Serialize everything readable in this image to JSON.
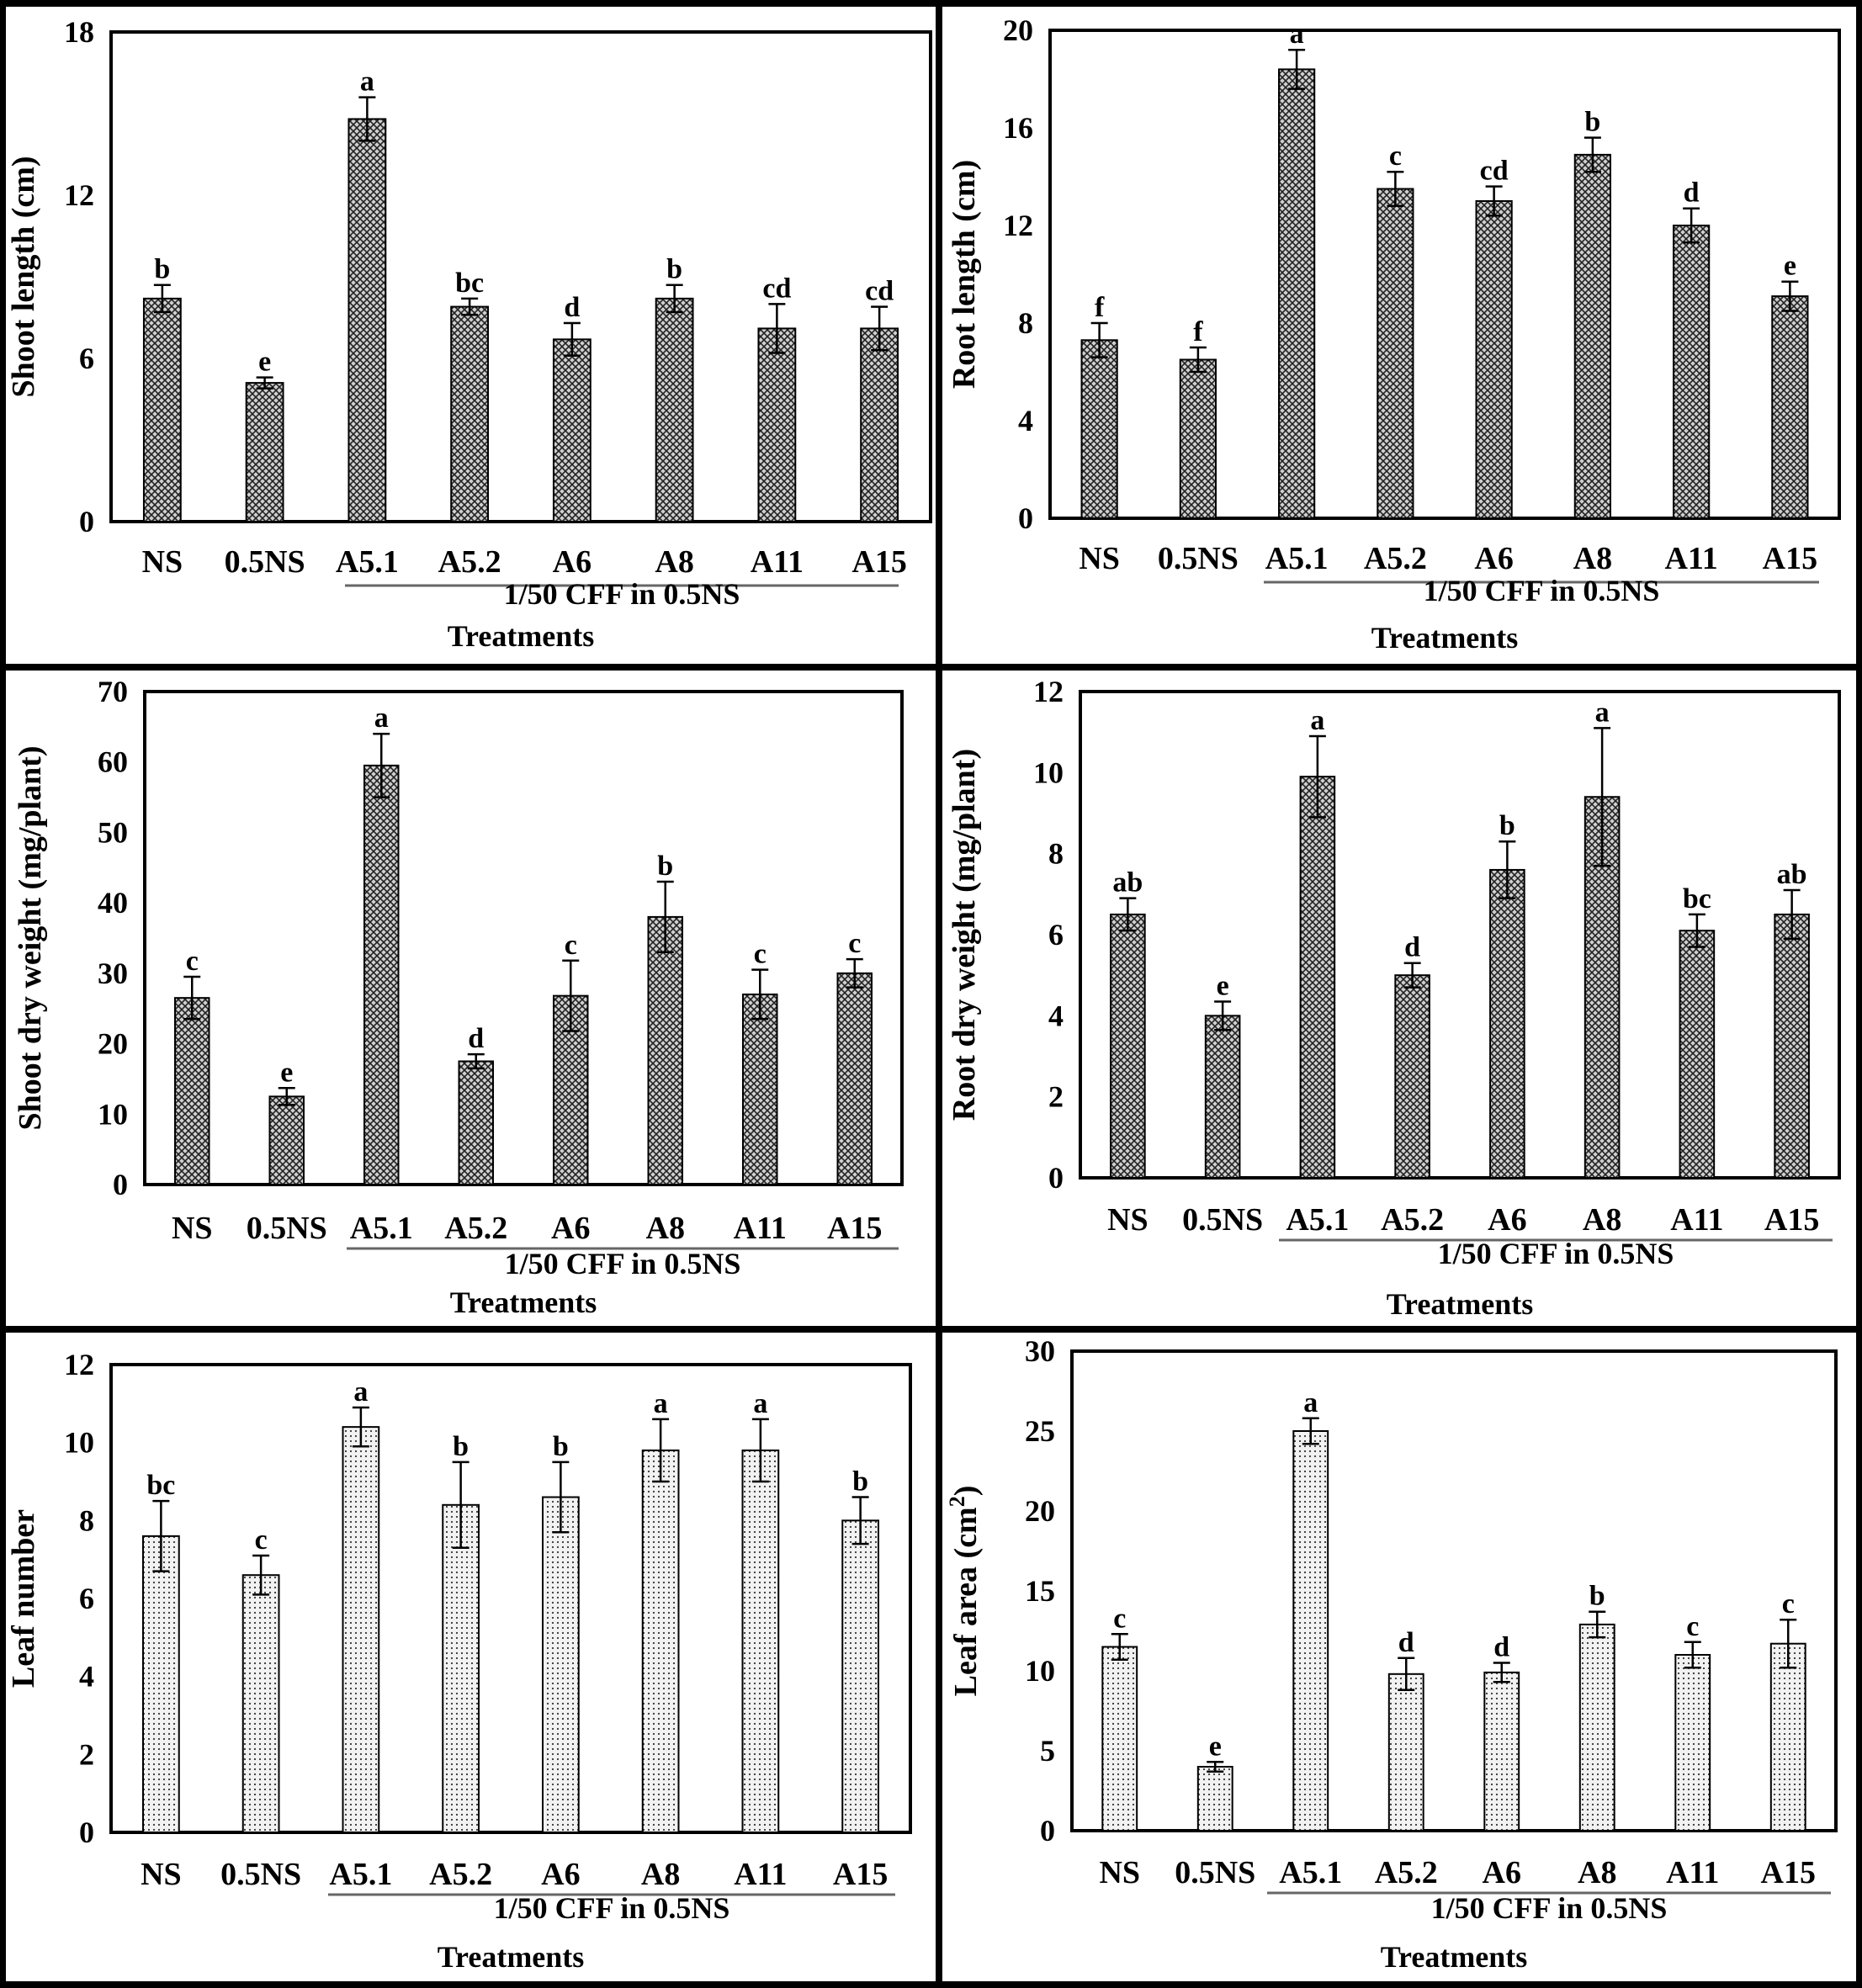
{
  "colors": {
    "bar_fill": "#d8d8d8",
    "frame": "#000000",
    "background": "#ffffff"
  },
  "chart_data": [
    {
      "type": "bar",
      "ylabel": "Shoot length (cm)",
      "xlabel": "Treatments",
      "group_label": "1/50 CFF in 0.5NS",
      "ylim": [
        0,
        18
      ],
      "yticks": [
        "0",
        "6",
        "12",
        "18"
      ],
      "ytick_values": [
        0,
        6,
        12,
        18
      ],
      "categories": [
        "NS",
        "0.5NS",
        "A5.1",
        "A5.2",
        "A6",
        "A8",
        "A11",
        "A15"
      ],
      "values": [
        8.2,
        5.1,
        14.8,
        7.9,
        6.7,
        8.2,
        7.1,
        7.1
      ],
      "errors": [
        0.5,
        0.2,
        0.8,
        0.3,
        0.6,
        0.5,
        0.9,
        0.8
      ],
      "significance": [
        "b",
        "e",
        "a",
        "bc",
        "d",
        "b",
        "cd",
        "cd"
      ],
      "pattern": "crosshatch"
    },
    {
      "type": "bar",
      "ylabel": "Root length (cm)",
      "xlabel": "Treatments",
      "group_label": "1/50 CFF in 0.5NS",
      "ylim": [
        0,
        20
      ],
      "yticks": [
        "0",
        "4",
        "8",
        "12",
        "16",
        "20"
      ],
      "ytick_values": [
        0,
        4,
        8,
        12,
        16,
        20
      ],
      "categories": [
        "NS",
        "0.5NS",
        "A5.1",
        "A5.2",
        "A6",
        "A8",
        "A11",
        "A15"
      ],
      "values": [
        7.3,
        6.5,
        18.4,
        13.5,
        13.0,
        14.9,
        12.0,
        9.1
      ],
      "errors": [
        0.7,
        0.5,
        0.8,
        0.7,
        0.6,
        0.7,
        0.7,
        0.6
      ],
      "significance": [
        "f",
        "f",
        "a",
        "c",
        "cd",
        "b",
        "d",
        "e"
      ],
      "pattern": "crosshatch"
    },
    {
      "type": "bar",
      "ylabel": "Shoot dry weight (mg/plant)",
      "xlabel": "Treatments",
      "group_label": "1/50 CFF in 0.5NS",
      "ylim": [
        0,
        70
      ],
      "yticks": [
        "0",
        "10",
        "20",
        "30",
        "40",
        "50",
        "60",
        "70"
      ],
      "ytick_values": [
        0,
        10,
        20,
        30,
        40,
        50,
        60,
        70
      ],
      "categories": [
        "NS",
        "0.5NS",
        "A5.1",
        "A5.2",
        "A6",
        "A8",
        "A11",
        "A15"
      ],
      "values": [
        26.5,
        12.5,
        59.5,
        17.5,
        26.8,
        38.0,
        27.0,
        30.0
      ],
      "errors": [
        3.0,
        1.2,
        4.5,
        1.0,
        5.0,
        5.0,
        3.5,
        2.0
      ],
      "significance": [
        "c",
        "e",
        "a",
        "d",
        "c",
        "b",
        "c",
        "c"
      ],
      "pattern": "crosshatch"
    },
    {
      "type": "bar",
      "ylabel": "Root dry weight (mg/plant)",
      "xlabel": "Treatments",
      "group_label": "1/50 CFF in 0.5NS",
      "ylim": [
        0,
        12
      ],
      "yticks": [
        "0",
        "2",
        "4",
        "6",
        "8",
        "10",
        "12"
      ],
      "ytick_values": [
        0,
        2,
        4,
        6,
        8,
        10,
        12
      ],
      "categories": [
        "NS",
        "0.5NS",
        "A5.1",
        "A5.2",
        "A6",
        "A8",
        "A11",
        "A15"
      ],
      "values": [
        6.5,
        4.0,
        9.9,
        5.0,
        7.6,
        9.4,
        6.1,
        6.5
      ],
      "errors": [
        0.4,
        0.35,
        1.0,
        0.3,
        0.7,
        1.7,
        0.4,
        0.6
      ],
      "significance": [
        "ab",
        "e",
        "a",
        "d",
        "b",
        "a",
        "bc",
        "ab"
      ],
      "pattern": "crosshatch"
    },
    {
      "type": "bar",
      "ylabel": "Leaf number",
      "xlabel": "Treatments",
      "group_label": "1/50 CFF in 0.5NS",
      "ylim": [
        0,
        12
      ],
      "yticks": [
        "0",
        "2",
        "4",
        "6",
        "8",
        "10",
        "12"
      ],
      "ytick_values": [
        0,
        2,
        4,
        6,
        8,
        10,
        12
      ],
      "categories": [
        "NS",
        "0.5NS",
        "A5.1",
        "A5.2",
        "A6",
        "A8",
        "A11",
        "A15"
      ],
      "values": [
        7.6,
        6.6,
        10.4,
        8.4,
        8.6,
        9.8,
        9.8,
        8.0
      ],
      "errors": [
        0.9,
        0.5,
        0.5,
        1.1,
        0.9,
        0.8,
        0.8,
        0.6
      ],
      "significance": [
        "bc",
        "c",
        "a",
        "b",
        "b",
        "a",
        "a",
        "b"
      ],
      "pattern": "dots"
    },
    {
      "type": "bar",
      "ylabel": "Leaf area (cm",
      "ylabel_sup": "2",
      "ylabel_end": ")",
      "xlabel": "Treatments",
      "group_label": "1/50 CFF in 0.5NS",
      "ylim": [
        0,
        30
      ],
      "yticks": [
        "0",
        "5",
        "10",
        "15",
        "20",
        "25",
        "30"
      ],
      "ytick_values": [
        0,
        5,
        10,
        15,
        20,
        25,
        30
      ],
      "categories": [
        "NS",
        "0.5NS",
        "A5.1",
        "A5.2",
        "A6",
        "A8",
        "A11",
        "A15"
      ],
      "values": [
        11.5,
        4.0,
        25.0,
        9.8,
        9.9,
        12.9,
        11.0,
        11.7
      ],
      "errors": [
        0.8,
        0.3,
        0.8,
        1.0,
        0.6,
        0.8,
        0.8,
        1.5
      ],
      "significance": [
        "c",
        "e",
        "a",
        "d",
        "d",
        "b",
        "c",
        "c"
      ],
      "pattern": "dots"
    }
  ]
}
